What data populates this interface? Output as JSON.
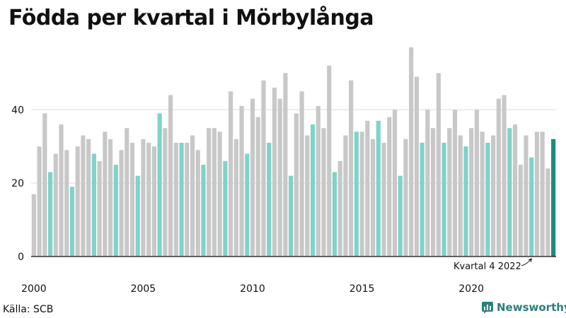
{
  "title": "Födda per kvartal i Mörbylånga",
  "source": "Källa: SCB",
  "brand": "Newsworthy",
  "annotation": "Kvartal 4 2022",
  "colors": {
    "bar_default": "#c8c8c8",
    "bar_same_quarter": "#7fd3c8",
    "bar_latest": "#1d8a7e",
    "grid": "#dddddd",
    "axis": "#111111",
    "brand": "#2a7f7a"
  },
  "chart_data": {
    "type": "bar",
    "title": "Födda per kvartal i Mörbylånga",
    "xlabel": "",
    "ylabel": "",
    "ylim": [
      0,
      57
    ],
    "yticks": [
      0,
      20,
      40
    ],
    "grid": true,
    "xtick_labels": [
      "2000",
      "2005",
      "2010",
      "2015",
      "2020"
    ],
    "start_year": 2000,
    "highlight_rule": "same quarter as latest (Q4) highlighted; latest bar emphasized",
    "values": [
      17,
      30,
      39,
      23,
      28,
      36,
      29,
      19,
      30,
      33,
      32,
      28,
      26,
      34,
      32,
      25,
      29,
      35,
      31,
      22,
      32,
      31,
      30,
      39,
      35,
      44,
      31,
      31,
      31,
      33,
      29,
      25,
      35,
      35,
      34,
      26,
      45,
      32,
      41,
      28,
      43,
      38,
      48,
      31,
      46,
      43,
      50,
      22,
      39,
      45,
      33,
      36,
      41,
      35,
      52,
      23,
      26,
      33,
      48,
      34,
      34,
      37,
      32,
      37,
      31,
      38,
      40,
      22,
      32,
      57,
      49,
      31,
      40,
      35,
      50,
      31,
      35,
      40,
      33,
      30,
      35,
      40,
      34,
      31,
      33,
      43,
      44,
      35,
      36,
      25,
      33,
      27,
      34,
      34,
      24,
      32
    ]
  }
}
